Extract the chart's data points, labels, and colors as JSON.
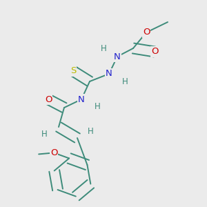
{
  "bg_color": "#ebebeb",
  "bond_color": "#3d8b7a",
  "bond_width": 1.4,
  "dbo": 0.025,
  "atom_colors": {
    "O": "#cc0000",
    "N": "#2222cc",
    "S": "#bbbb00",
    "H": "#3d8b7a",
    "C": "#3d8b7a"
  },
  "fs": 9.5,
  "fss": 8.5
}
